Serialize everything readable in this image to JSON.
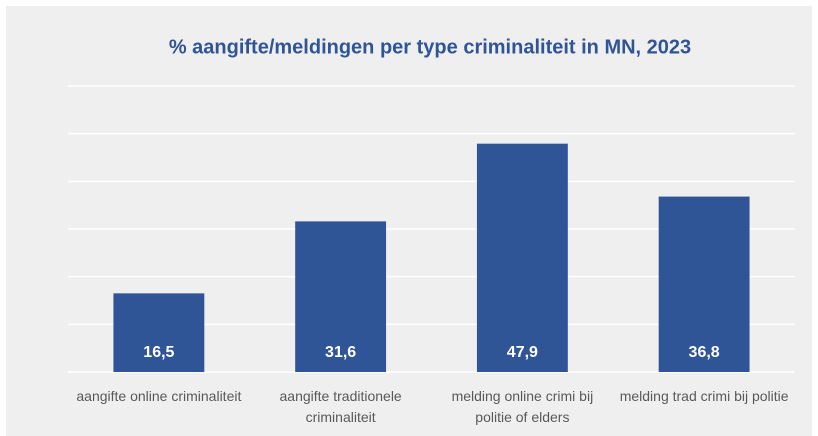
{
  "chart_data": {
    "type": "bar",
    "title": "% aangifte/meldingen per type criminaliteit in MN, 2023",
    "categories": [
      "aangifte online criminaliteit",
      "aangifte traditionele criminaliteit",
      "melding online crimi bij politie of elders",
      "melding trad crimi bij politie"
    ],
    "values": [
      16.5,
      31.6,
      47.9,
      36.8
    ],
    "value_labels": [
      "16,5",
      "31,6",
      "47,9",
      "36,8"
    ],
    "color": "#2f5597",
    "ylim": [
      0,
      60
    ],
    "yticks": [
      0,
      10,
      20,
      30,
      40,
      50,
      60
    ],
    "grid": true
  }
}
